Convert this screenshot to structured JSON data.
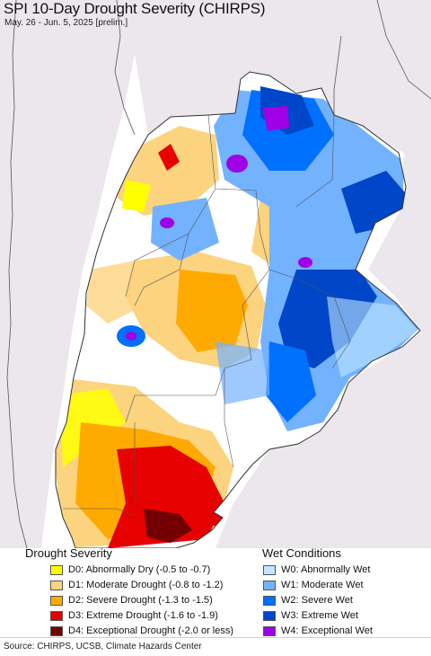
{
  "title": "SPI 10-Day Drought Severity (CHIRPS)",
  "subtitle": "May. 26 - Jun. 5, 2025 [prelim.]",
  "legend": {
    "drought_heading": "Drought Severity",
    "wet_heading": "Wet Conditions",
    "drought": [
      {
        "label": "D0: Abnormally Dry (-0.5 to -0.7)",
        "color": "#ffff00"
      },
      {
        "label": "D1: Moderate Drought (-0.8 to -1.2)",
        "color": "#fcd37f"
      },
      {
        "label": "D2: Severe Drought (-1.3 to -1.5)",
        "color": "#ffaa00"
      },
      {
        "label": "D3: Extreme Drought (-1.6 to -1.9)",
        "color": "#e60000"
      },
      {
        "label": "D4: Exceptional Drought (-2.0 or less)",
        "color": "#730000"
      }
    ],
    "wet": [
      {
        "label": "W0: Abnormally Wet",
        "color": "#bfe8ff"
      },
      {
        "label": "W1: Moderate Wet",
        "color": "#73b2ff"
      },
      {
        "label": "W2: Severe Wet",
        "color": "#0070ff"
      },
      {
        "label": "W3: Extreme Wet",
        "color": "#0046c8"
      },
      {
        "label": "W4: Exceptional Wet",
        "color": "#a000e6"
      }
    ]
  },
  "colors": {
    "ocean": "#ffffff",
    "outside_land": "#ebe7ec",
    "normal_land": "#ffffff",
    "border": "#444444"
  },
  "source": "Source: CHIRPS, UCSB, Climate Hazards Center"
}
